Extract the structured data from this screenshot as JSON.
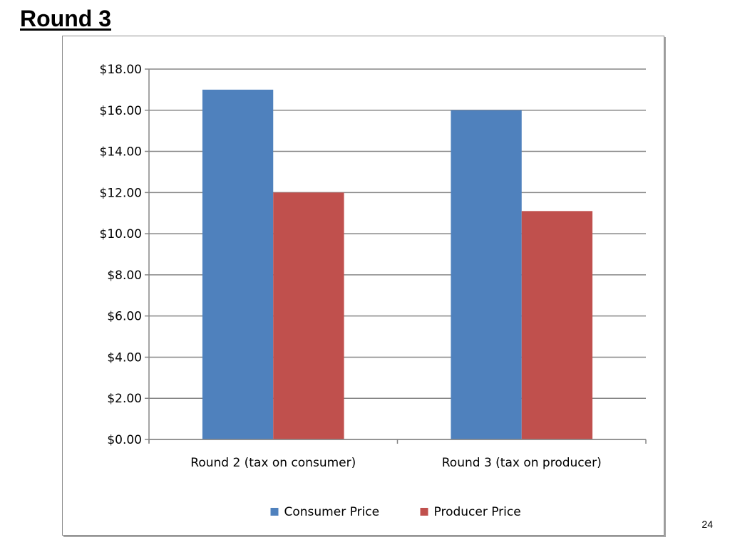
{
  "slide": {
    "title": "Round 3",
    "page_number": "24"
  },
  "chart_data": {
    "type": "bar",
    "categories": [
      "Round 2 (tax on consumer)",
      "Round 3 (tax on producer)"
    ],
    "series": [
      {
        "name": "Consumer Price",
        "values": [
          17.0,
          16.0
        ],
        "color": "#4f81bd"
      },
      {
        "name": "Producer Price",
        "values": [
          12.0,
          11.1
        ],
        "color": "#c0504d"
      }
    ],
    "ylim": [
      0,
      18
    ],
    "y_ticks": [
      0,
      2,
      4,
      6,
      8,
      10,
      12,
      14,
      16,
      18
    ],
    "y_tick_labels": [
      "$0.00",
      "$2.00",
      "$4.00",
      "$6.00",
      "$8.00",
      "$10.00",
      "$12.00",
      "$14.00",
      "$16.00",
      "$18.00"
    ],
    "title": "",
    "xlabel": "",
    "ylabel": "",
    "grid": true,
    "legend_position": "bottom",
    "gridline_color": "#868686"
  }
}
